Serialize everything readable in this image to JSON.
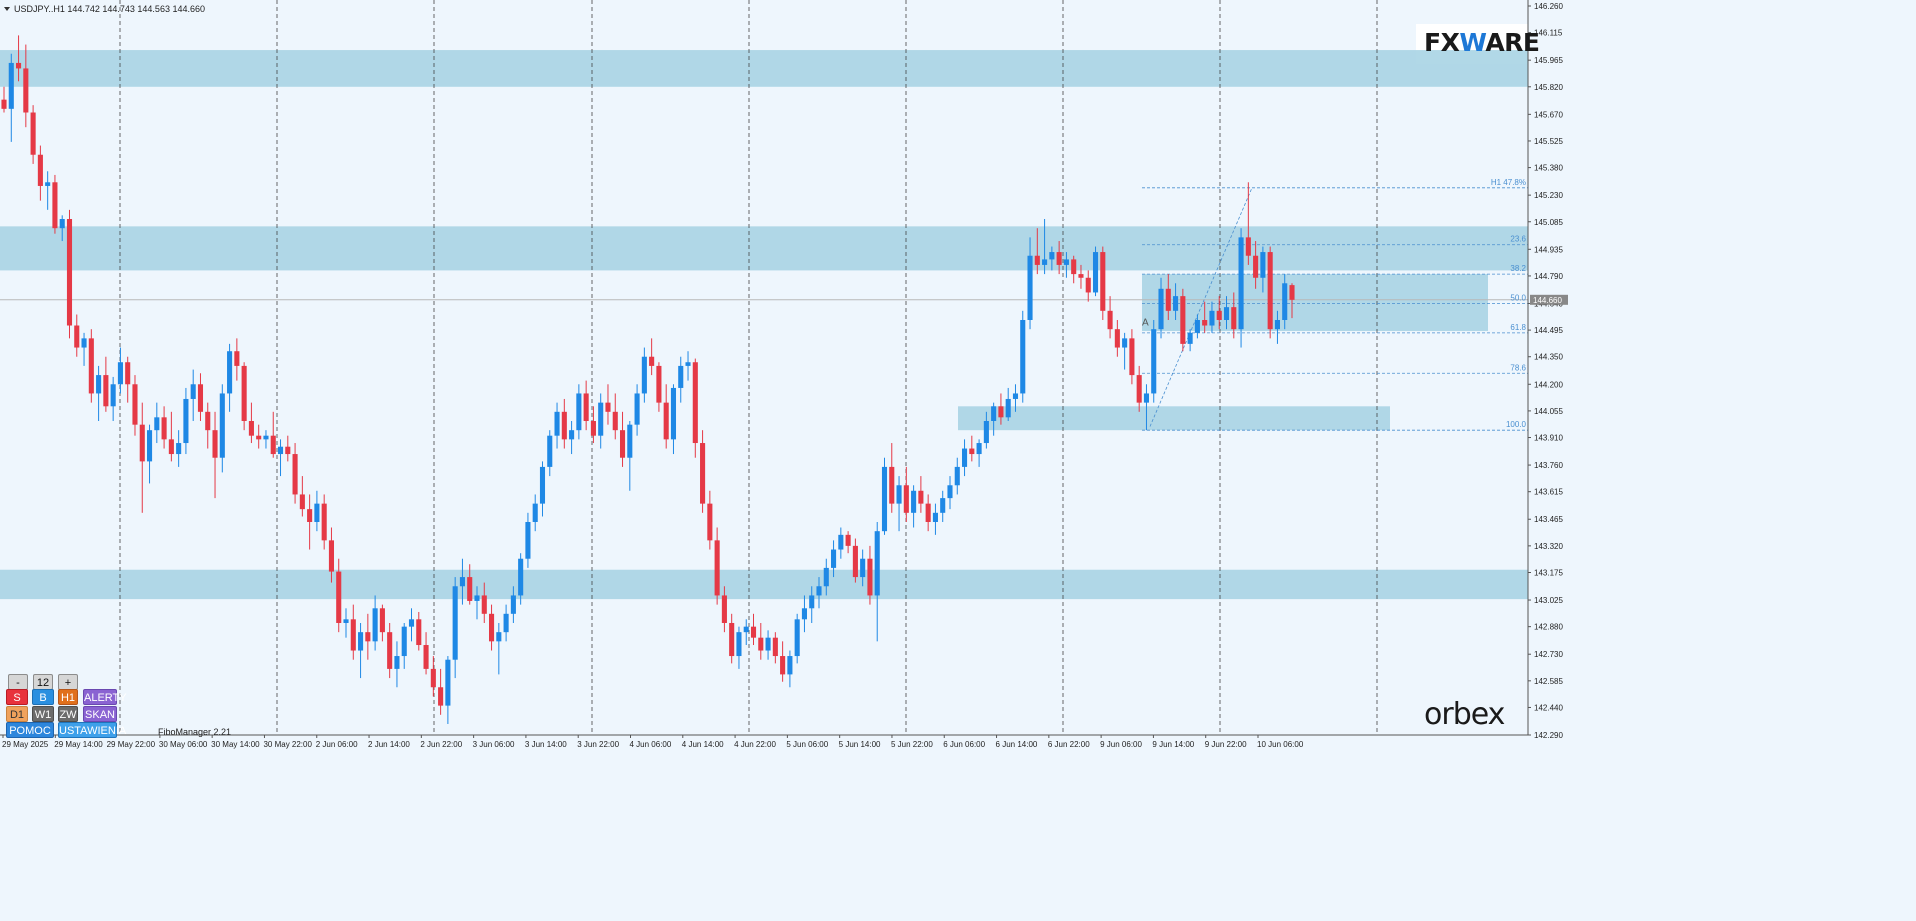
{
  "header": {
    "symbol_text": "USDJPY..H1  144.742 144.743 144.563 144.660",
    "indicator_label": "FiboManager 2.21"
  },
  "logos": {
    "top_brand": "FXWARE",
    "top_brand_prefix": "FX",
    "top_brand_mid": "W",
    "top_brand_suffix": "ARE",
    "bottom_brand": "orbex"
  },
  "controls": {
    "row1": [
      "-",
      "12",
      "+"
    ],
    "row2": [
      "S",
      "B",
      "H1",
      "ALERTY"
    ],
    "row3": [
      "D1",
      "W1",
      "ZW",
      "SKAN"
    ],
    "row4": [
      "POMOC",
      "USTAWIENIA"
    ]
  },
  "colors": {
    "background": "#eef6fd",
    "bull": "#1e88e5",
    "bear": "#e53946",
    "zone": "#a9d4e4",
    "grid": "#444444",
    "fib": "#4a8fd0"
  },
  "chart_data": {
    "type": "candlestick",
    "symbol": "USDJPY..H1",
    "ohlc_header": {
      "open": 144.742,
      "high": 144.743,
      "low": 144.563,
      "close": 144.66
    },
    "current_price": 144.66,
    "ylim": [
      142.29,
      146.26
    ],
    "y_ticks": [
      "146.260",
      "146.115",
      "145.965",
      "145.820",
      "145.670",
      "145.525",
      "145.380",
      "145.230",
      "145.085",
      "144.935",
      "144.790",
      "144.640",
      "144.495",
      "144.350",
      "144.200",
      "144.055",
      "143.910",
      "143.760",
      "143.615",
      "143.465",
      "143.320",
      "143.175",
      "143.025",
      "142.880",
      "142.730",
      "142.585",
      "142.440",
      "142.290"
    ],
    "x_ticks": [
      "29 May 2025",
      "29 May 14:00",
      "29 May 22:00",
      "30 May 06:00",
      "30 May 14:00",
      "30 May 22:00",
      "2 Jun 06:00",
      "2 Jun 14:00",
      "2 Jun 22:00",
      "3 Jun 06:00",
      "3 Jun 14:00",
      "3 Jun 22:00",
      "4 Jun 06:00",
      "4 Jun 14:00",
      "4 Jun 22:00",
      "5 Jun 06:00",
      "5 Jun 14:00",
      "5 Jun 22:00",
      "6 Jun 06:00",
      "6 Jun 14:00",
      "6 Jun 22:00",
      "9 Jun 06:00",
      "9 Jun 14:00",
      "9 Jun 22:00",
      "10 Jun 06:00"
    ],
    "zones": [
      {
        "from": 145.82,
        "to": 146.02
      },
      {
        "from": 144.82,
        "to": 145.06
      },
      {
        "from": 143.03,
        "to": 143.19
      },
      {
        "from": 143.95,
        "to": 144.08
      },
      {
        "from": 144.49,
        "to": 144.8
      }
    ],
    "fibonacci": {
      "levels": [
        {
          "label": "H1 47.8%",
          "price": 145.27
        },
        {
          "label": "23.6",
          "price": 144.96
        },
        {
          "label": "38.2",
          "price": 144.8
        },
        {
          "label": "50.0",
          "price": 144.64
        },
        {
          "label": "61.8",
          "price": 144.48
        },
        {
          "label": "78.6",
          "price": 144.26
        },
        {
          "label": "100.0",
          "price": 143.95
        }
      ],
      "anchor_label": "A"
    },
    "candles": [
      [
        145.75,
        145.82,
        145.68,
        145.7
      ],
      [
        145.7,
        146.0,
        145.52,
        145.95
      ],
      [
        145.95,
        146.1,
        145.85,
        145.92
      ],
      [
        145.92,
        146.05,
        145.6,
        145.68
      ],
      [
        145.68,
        145.72,
        145.4,
        145.45
      ],
      [
        145.45,
        145.5,
        145.2,
        145.28
      ],
      [
        145.28,
        145.36,
        145.15,
        145.3
      ],
      [
        145.3,
        145.34,
        145.02,
        145.05
      ],
      [
        145.05,
        145.12,
        144.98,
        145.1
      ],
      [
        145.1,
        145.15,
        144.45,
        144.52
      ],
      [
        144.52,
        144.58,
        144.35,
        144.4
      ],
      [
        144.4,
        144.48,
        144.3,
        144.45
      ],
      [
        144.45,
        144.5,
        144.1,
        144.15
      ],
      [
        144.15,
        144.3,
        144.0,
        144.25
      ],
      [
        144.25,
        144.35,
        144.05,
        144.08
      ],
      [
        144.08,
        144.24,
        144.0,
        144.2
      ],
      [
        144.2,
        144.4,
        144.15,
        144.32
      ],
      [
        144.32,
        144.35,
        144.1,
        144.2
      ],
      [
        144.2,
        144.25,
        143.92,
        143.98
      ],
      [
        143.98,
        144.1,
        143.5,
        143.78
      ],
      [
        143.78,
        143.98,
        143.66,
        143.95
      ],
      [
        143.95,
        144.1,
        143.88,
        144.02
      ],
      [
        144.02,
        144.08,
        143.85,
        143.9
      ],
      [
        143.9,
        144.05,
        143.78,
        143.82
      ],
      [
        143.82,
        143.95,
        143.75,
        143.88
      ],
      [
        143.88,
        144.18,
        143.82,
        144.12
      ],
      [
        144.12,
        144.28,
        144.0,
        144.2
      ],
      [
        144.2,
        144.26,
        144.0,
        144.05
      ],
      [
        144.05,
        144.1,
        143.85,
        143.95
      ],
      [
        143.95,
        144.05,
        143.58,
        143.8
      ],
      [
        143.8,
        144.2,
        143.72,
        144.15
      ],
      [
        144.15,
        144.42,
        144.05,
        144.38
      ],
      [
        144.38,
        144.45,
        144.22,
        144.3
      ],
      [
        144.3,
        144.32,
        143.95,
        144.0
      ],
      [
        144.0,
        144.1,
        143.88,
        143.92
      ],
      [
        143.92,
        143.98,
        143.85,
        143.9
      ],
      [
        143.9,
        143.95,
        143.85,
        143.92
      ],
      [
        143.92,
        144.05,
        143.8,
        143.82
      ],
      [
        143.82,
        143.9,
        143.7,
        143.86
      ],
      [
        143.86,
        143.92,
        143.78,
        143.82
      ],
      [
        143.82,
        143.88,
        143.55,
        143.6
      ],
      [
        143.6,
        143.7,
        143.48,
        143.52
      ],
      [
        143.52,
        143.6,
        143.3,
        143.45
      ],
      [
        143.45,
        143.62,
        143.4,
        143.55
      ],
      [
        143.55,
        143.6,
        143.3,
        143.35
      ],
      [
        143.35,
        143.42,
        143.12,
        143.18
      ],
      [
        143.18,
        143.25,
        142.85,
        142.9
      ],
      [
        142.9,
        142.98,
        142.82,
        142.92
      ],
      [
        142.92,
        143.0,
        142.7,
        142.75
      ],
      [
        142.75,
        142.9,
        142.6,
        142.85
      ],
      [
        142.85,
        142.95,
        142.7,
        142.8
      ],
      [
        142.8,
        143.05,
        142.75,
        142.98
      ],
      [
        142.98,
        143.0,
        142.8,
        142.85
      ],
      [
        142.85,
        142.9,
        142.6,
        142.65
      ],
      [
        142.65,
        142.8,
        142.55,
        142.72
      ],
      [
        142.72,
        142.9,
        142.65,
        142.88
      ],
      [
        142.88,
        142.98,
        142.8,
        142.92
      ],
      [
        142.92,
        142.96,
        142.75,
        142.78
      ],
      [
        142.78,
        142.85,
        142.62,
        142.65
      ],
      [
        142.65,
        142.72,
        142.5,
        142.55
      ],
      [
        142.55,
        142.65,
        142.4,
        142.45
      ],
      [
        142.45,
        142.72,
        142.35,
        142.7
      ],
      [
        142.7,
        143.15,
        142.6,
        143.1
      ],
      [
        143.1,
        143.25,
        143.0,
        143.15
      ],
      [
        143.15,
        143.22,
        143.0,
        143.02
      ],
      [
        143.02,
        143.1,
        142.92,
        143.05
      ],
      [
        143.05,
        143.12,
        142.9,
        142.95
      ],
      [
        142.95,
        143.0,
        142.75,
        142.8
      ],
      [
        142.8,
        142.9,
        142.62,
        142.85
      ],
      [
        142.85,
        143.0,
        142.8,
        142.95
      ],
      [
        142.95,
        143.1,
        142.9,
        143.05
      ],
      [
        143.05,
        143.28,
        143.0,
        143.25
      ],
      [
        143.25,
        143.5,
        143.2,
        143.45
      ],
      [
        143.45,
        143.6,
        143.4,
        143.55
      ],
      [
        143.55,
        143.78,
        143.48,
        143.75
      ],
      [
        143.75,
        143.95,
        143.7,
        143.92
      ],
      [
        143.92,
        144.1,
        143.85,
        144.05
      ],
      [
        144.05,
        144.12,
        143.85,
        143.9
      ],
      [
        143.9,
        144.0,
        143.82,
        143.95
      ],
      [
        143.95,
        144.2,
        143.9,
        144.15
      ],
      [
        144.15,
        144.22,
        143.95,
        144.0
      ],
      [
        144.0,
        144.08,
        143.88,
        143.92
      ],
      [
        143.92,
        144.15,
        143.85,
        144.1
      ],
      [
        144.1,
        144.2,
        143.98,
        144.05
      ],
      [
        144.05,
        144.15,
        143.9,
        143.95
      ],
      [
        143.95,
        144.05,
        143.75,
        143.8
      ],
      [
        143.8,
        144.0,
        143.62,
        143.98
      ],
      [
        143.98,
        144.2,
        143.92,
        144.15
      ],
      [
        144.15,
        144.4,
        144.1,
        144.35
      ],
      [
        144.35,
        144.45,
        144.25,
        144.3
      ],
      [
        144.3,
        144.32,
        144.05,
        144.1
      ],
      [
        144.1,
        144.2,
        143.85,
        143.9
      ],
      [
        143.9,
        144.2,
        143.82,
        144.18
      ],
      [
        144.18,
        144.35,
        144.1,
        144.3
      ],
      [
        144.3,
        144.38,
        144.22,
        144.32
      ],
      [
        144.32,
        144.34,
        143.8,
        143.88
      ],
      [
        143.88,
        143.95,
        143.5,
        143.55
      ],
      [
        143.55,
        143.62,
        143.3,
        143.35
      ],
      [
        143.35,
        143.42,
        143.0,
        143.05
      ],
      [
        143.05,
        143.1,
        142.85,
        142.9
      ],
      [
        142.9,
        142.95,
        142.68,
        142.72
      ],
      [
        142.72,
        142.88,
        142.65,
        142.85
      ],
      [
        142.85,
        142.92,
        142.78,
        142.88
      ],
      [
        142.88,
        142.95,
        142.78,
        142.82
      ],
      [
        142.82,
        142.9,
        142.7,
        142.75
      ],
      [
        142.75,
        142.86,
        142.7,
        142.82
      ],
      [
        142.82,
        142.85,
        142.68,
        142.72
      ],
      [
        142.72,
        142.8,
        142.58,
        142.62
      ],
      [
        142.62,
        142.75,
        142.55,
        142.72
      ],
      [
        142.72,
        142.95,
        142.68,
        142.92
      ],
      [
        142.92,
        143.05,
        142.85,
        142.98
      ],
      [
        142.98,
        143.1,
        142.9,
        143.05
      ],
      [
        143.05,
        143.15,
        142.98,
        143.1
      ],
      [
        143.1,
        143.25,
        143.05,
        143.2
      ],
      [
        143.2,
        143.35,
        143.15,
        143.3
      ],
      [
        143.3,
        143.42,
        143.25,
        143.38
      ],
      [
        143.38,
        143.4,
        143.28,
        143.32
      ],
      [
        143.32,
        143.36,
        143.12,
        143.15
      ],
      [
        143.15,
        143.3,
        143.1,
        143.25
      ],
      [
        143.25,
        143.32,
        143.0,
        143.05
      ],
      [
        143.05,
        143.45,
        142.8,
        143.4
      ],
      [
        143.4,
        143.8,
        143.38,
        143.75
      ],
      [
        143.75,
        143.88,
        143.5,
        143.55
      ],
      [
        143.55,
        143.7,
        143.4,
        143.65
      ],
      [
        143.65,
        143.75,
        143.45,
        143.5
      ],
      [
        143.5,
        143.65,
        143.42,
        143.62
      ],
      [
        143.62,
        143.7,
        143.5,
        143.55
      ],
      [
        143.55,
        143.6,
        143.4,
        143.45
      ],
      [
        143.45,
        143.55,
        143.38,
        143.5
      ],
      [
        143.5,
        143.62,
        143.45,
        143.58
      ],
      [
        143.58,
        143.7,
        143.52,
        143.65
      ],
      [
        143.65,
        143.8,
        143.6,
        143.75
      ],
      [
        143.75,
        143.9,
        143.7,
        143.85
      ],
      [
        143.85,
        143.92,
        143.78,
        143.82
      ],
      [
        143.82,
        143.9,
        143.75,
        143.88
      ],
      [
        143.88,
        144.05,
        143.85,
        144.0
      ],
      [
        144.0,
        144.1,
        143.92,
        144.08
      ],
      [
        144.08,
        144.15,
        143.98,
        144.02
      ],
      [
        144.02,
        144.18,
        144.0,
        144.12
      ],
      [
        144.12,
        144.2,
        144.05,
        144.15
      ],
      [
        144.15,
        144.6,
        144.1,
        144.55
      ],
      [
        144.55,
        145.0,
        144.5,
        144.9
      ],
      [
        144.9,
        145.05,
        144.8,
        144.85
      ],
      [
        144.85,
        145.1,
        144.8,
        144.88
      ],
      [
        144.88,
        144.95,
        144.82,
        144.92
      ],
      [
        144.92,
        144.98,
        144.8,
        144.85
      ],
      [
        144.85,
        144.92,
        144.78,
        144.88
      ],
      [
        144.88,
        144.9,
        144.75,
        144.8
      ],
      [
        144.8,
        144.85,
        144.72,
        144.78
      ],
      [
        144.78,
        144.82,
        144.65,
        144.7
      ],
      [
        144.7,
        144.95,
        144.68,
        144.92
      ],
      [
        144.92,
        144.95,
        144.55,
        144.6
      ],
      [
        144.6,
        144.68,
        144.45,
        144.5
      ],
      [
        144.5,
        144.55,
        144.35,
        144.4
      ],
      [
        144.4,
        144.48,
        144.28,
        144.45
      ],
      [
        144.45,
        144.5,
        144.2,
        144.25
      ],
      [
        144.25,
        144.3,
        144.05,
        144.1
      ],
      [
        144.1,
        144.2,
        143.95,
        144.15
      ],
      [
        144.15,
        144.55,
        144.1,
        144.5
      ],
      [
        144.5,
        144.78,
        144.45,
        144.72
      ],
      [
        144.72,
        144.8,
        144.55,
        144.6
      ],
      [
        144.6,
        144.75,
        144.55,
        144.68
      ],
      [
        144.68,
        144.72,
        144.38,
        144.42
      ],
      [
        144.42,
        144.5,
        144.38,
        144.48
      ],
      [
        144.48,
        144.58,
        144.45,
        144.55
      ],
      [
        144.55,
        144.65,
        144.48,
        144.52
      ],
      [
        144.52,
        144.65,
        144.48,
        144.6
      ],
      [
        144.6,
        144.68,
        144.5,
        144.55
      ],
      [
        144.55,
        144.68,
        144.5,
        144.62
      ],
      [
        144.62,
        144.7,
        144.45,
        144.5
      ],
      [
        144.5,
        145.05,
        144.4,
        145.0
      ],
      [
        145.0,
        145.3,
        144.85,
        144.9
      ],
      [
        144.9,
        144.98,
        144.72,
        144.78
      ],
      [
        144.78,
        144.95,
        144.7,
        144.92
      ],
      [
        144.92,
        144.95,
        144.45,
        144.5
      ],
      [
        144.5,
        144.6,
        144.42,
        144.55
      ],
      [
        144.55,
        144.8,
        144.5,
        144.75
      ],
      [
        144.74,
        144.75,
        144.56,
        144.66
      ]
    ]
  }
}
